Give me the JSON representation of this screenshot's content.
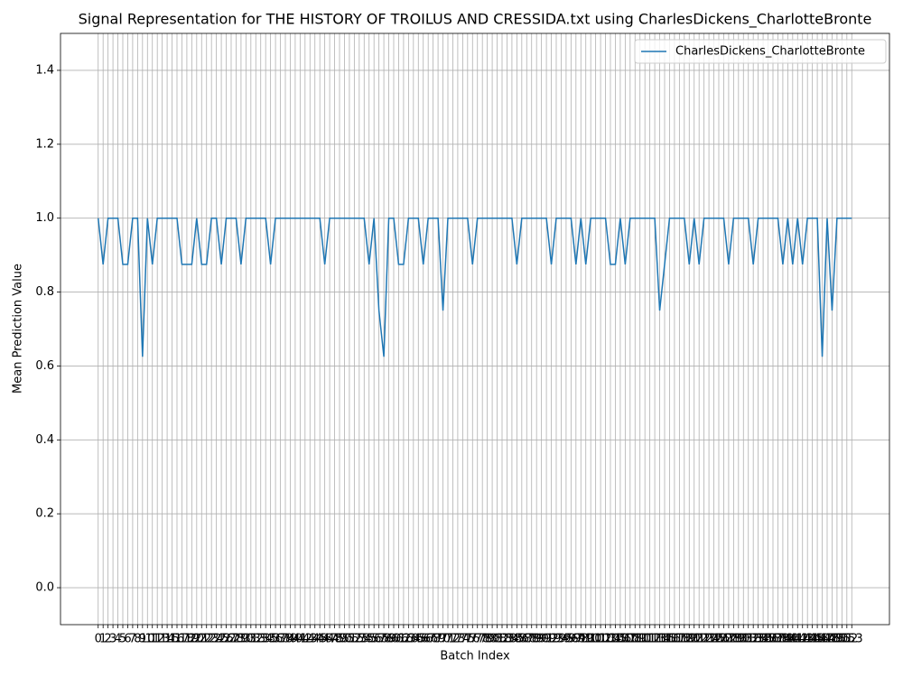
{
  "chart_data": {
    "type": "line",
    "title": "Signal Representation for THE HISTORY OF TROILUS AND CRESSIDA.txt using CharlesDickens_CharlotteBronte",
    "xlabel": "Batch Index",
    "ylabel": "Mean Prediction Value",
    "x": [
      0,
      1,
      2,
      3,
      4,
      5,
      6,
      7,
      8,
      9,
      10,
      11,
      12,
      13,
      14,
      15,
      16,
      17,
      18,
      19,
      20,
      21,
      22,
      23,
      24,
      25,
      26,
      27,
      28,
      29,
      30,
      31,
      32,
      33,
      34,
      35,
      36,
      37,
      38,
      39,
      40,
      41,
      42,
      43,
      44,
      45,
      46,
      47,
      48,
      49,
      50,
      51,
      52,
      53,
      54,
      55,
      56,
      57,
      58,
      59,
      60,
      61,
      62,
      63,
      64,
      65,
      66,
      67,
      68,
      69,
      70,
      71,
      72,
      73,
      74,
      75,
      76,
      77,
      78,
      79,
      80,
      81,
      82,
      83,
      84,
      85,
      86,
      87,
      88,
      89,
      90,
      91,
      92,
      93,
      94,
      95,
      96,
      97,
      98,
      99,
      100,
      101,
      102,
      103,
      104,
      105,
      106,
      107,
      108,
      109,
      110,
      111,
      112,
      113,
      114,
      115,
      116,
      117,
      118,
      119,
      120,
      121,
      122,
      123,
      124,
      125,
      126,
      127,
      128,
      129,
      130,
      131,
      132,
      133,
      134,
      135,
      136,
      137,
      138,
      139,
      140,
      141,
      142,
      143,
      144,
      145,
      146,
      147,
      148,
      149,
      150,
      151,
      152,
      153
    ],
    "series": [
      {
        "name": "CharlesDickens_CharlotteBronte",
        "color": "#1f77b4",
        "values": [
          1,
          0.875,
          1,
          1,
          1,
          0.875,
          0.875,
          1,
          1,
          0.625,
          1,
          0.875,
          1,
          1,
          1,
          1,
          1,
          0.875,
          0.875,
          0.875,
          1,
          0.875,
          0.875,
          1,
          1,
          0.875,
          1,
          1,
          1,
          0.875,
          1,
          1,
          1,
          1,
          1,
          0.875,
          1,
          1,
          1,
          1,
          1,
          1,
          1,
          1,
          1,
          1,
          0.875,
          1,
          1,
          1,
          1,
          1,
          1,
          1,
          1,
          0.875,
          1,
          0.75,
          0.625,
          1,
          1,
          0.875,
          0.875,
          1,
          1,
          1,
          0.875,
          1,
          1,
          1,
          0.75,
          1,
          1,
          1,
          1,
          1,
          0.875,
          1,
          1,
          1,
          1,
          1,
          1,
          1,
          1,
          0.875,
          1,
          1,
          1,
          1,
          1,
          1,
          0.875,
          1,
          1,
          1,
          1,
          0.875,
          1,
          0.875,
          1,
          1,
          1,
          1,
          0.875,
          0.875,
          1,
          0.875,
          1,
          1,
          1,
          1,
          1,
          1,
          0.75,
          0.875,
          1,
          1,
          1,
          1,
          0.875,
          1,
          0.875,
          1,
          1,
          1,
          1,
          1,
          0.875,
          1,
          1,
          1,
          1,
          0.875,
          1,
          1,
          1,
          1,
          1,
          0.875,
          1,
          0.875,
          1,
          0.875,
          1,
          1,
          1,
          0.625,
          1,
          0.75,
          1,
          1,
          1,
          1
        ]
      }
    ],
    "xlim": [
      -7.65,
      160.65
    ],
    "xticks": [
      0,
      1,
      2,
      3,
      4,
      5,
      6,
      7,
      8,
      9,
      10,
      11,
      12,
      13,
      14,
      15,
      16,
      17,
      18,
      19,
      20,
      21,
      22,
      23,
      24,
      25,
      26,
      27,
      28,
      29,
      30,
      31,
      32,
      33,
      34,
      35,
      36,
      37,
      38,
      39,
      40,
      41,
      42,
      43,
      44,
      45,
      46,
      47,
      48,
      49,
      50,
      51,
      52,
      53,
      54,
      55,
      56,
      57,
      58,
      59,
      60,
      61,
      62,
      63,
      64,
      65,
      66,
      67,
      68,
      69,
      70,
      71,
      72,
      73,
      74,
      75,
      76,
      77,
      78,
      79,
      80,
      81,
      82,
      83,
      84,
      85,
      86,
      87,
      88,
      89,
      90,
      91,
      92,
      93,
      94,
      95,
      96,
      97,
      98,
      99,
      100,
      101,
      102,
      103,
      104,
      105,
      106,
      107,
      108,
      109,
      110,
      111,
      112,
      113,
      114,
      115,
      116,
      117,
      118,
      119,
      120,
      121,
      122,
      123,
      124,
      125,
      126,
      127,
      128,
      129,
      130,
      131,
      132,
      133,
      134,
      135,
      136,
      137,
      138,
      139,
      140,
      141,
      142,
      143,
      144,
      145,
      146,
      147,
      148,
      149,
      150,
      151,
      152,
      153
    ],
    "ylim": [
      -0.1,
      1.5
    ],
    "yticks": [
      {
        "value": 0,
        "label": "0.0"
      },
      {
        "value": 0.2,
        "label": "0.2"
      },
      {
        "value": 0.4,
        "label": "0.4"
      },
      {
        "value": 0.6,
        "label": "0.6"
      },
      {
        "value": 0.8,
        "label": "0.8"
      },
      {
        "value": 1,
        "label": "1.0"
      },
      {
        "value": 1.2,
        "label": "1.2"
      },
      {
        "value": 1.4,
        "label": "1.4"
      }
    ],
    "grid": true,
    "legend": "upper right"
  }
}
